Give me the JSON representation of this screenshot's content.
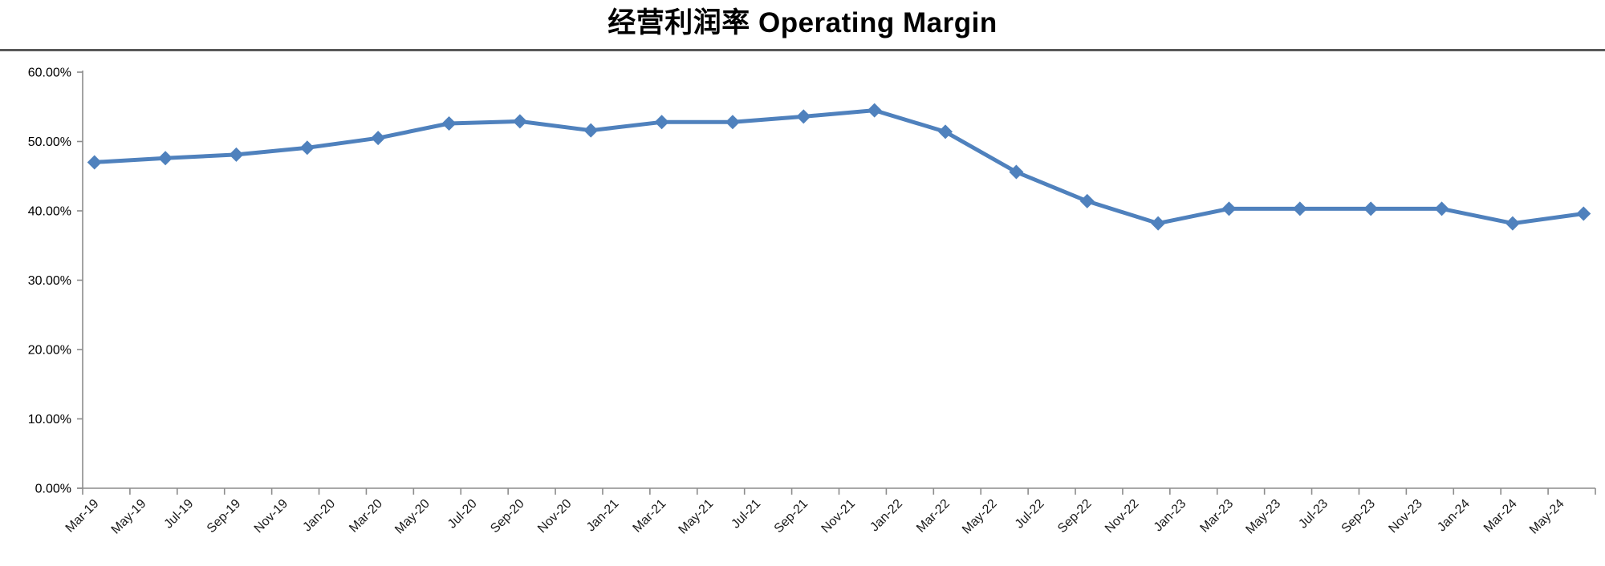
{
  "chart_data": {
    "type": "line",
    "title": "经营利润率 Operating Margin",
    "legend": "none",
    "grid": "off",
    "background": "#ffffff",
    "ylim": [
      0,
      60
    ],
    "y_unit": "%",
    "y_tick_labels": [
      "0.00%",
      "10.00%",
      "20.00%",
      "30.00%",
      "40.00%",
      "50.00%",
      "60.00%"
    ],
    "x_axis_tick_labels": [
      "Mar-19",
      "May-19",
      "Jul-19",
      "Sep-19",
      "Nov-19",
      "Jan-20",
      "Mar-20",
      "May-20",
      "Jul-20",
      "Sep-20",
      "Nov-20",
      "Jan-21",
      "Mar-21",
      "May-21",
      "Jul-21",
      "Sep-21",
      "Nov-21",
      "Jan-22",
      "Mar-22",
      "May-22",
      "Jul-22",
      "Sep-22",
      "Nov-22",
      "Jan-23",
      "Mar-23",
      "May-23",
      "Jul-23",
      "Sep-23",
      "Nov-23",
      "Jan-24",
      "Mar-24",
      "May-24"
    ],
    "axis_structure": {
      "n_categories": 64,
      "first_category": "Mar-19",
      "labels_every_n_categories": 2,
      "points_every_n_categories": 3
    },
    "series": [
      {
        "name": "Operating Margin",
        "marker": "diamond",
        "color": "#4F81BD",
        "x": [
          "Mar-19",
          "Jun-19",
          "Sep-19",
          "Dec-19",
          "Mar-20",
          "Jun-20",
          "Sep-20",
          "Dec-20",
          "Mar-21",
          "Jun-21",
          "Sep-21",
          "Dec-21",
          "Mar-22",
          "Jun-22",
          "Sep-22",
          "Dec-22",
          "Mar-23",
          "Jun-23",
          "Sep-23",
          "Dec-23",
          "Mar-24",
          "Jun-24"
        ],
        "values": [
          47.0,
          47.6,
          48.1,
          49.1,
          50.5,
          52.6,
          52.9,
          51.6,
          52.8,
          52.8,
          53.6,
          54.5,
          51.4,
          45.6,
          41.4,
          38.2,
          40.3,
          40.3,
          40.3,
          40.3,
          38.2,
          39.6
        ]
      }
    ],
    "colors": {
      "line": "#4F81BD",
      "axis": "#8C8C8C",
      "title": "#000000",
      "title_divider": "#595959",
      "tick_label": "#000000"
    }
  }
}
